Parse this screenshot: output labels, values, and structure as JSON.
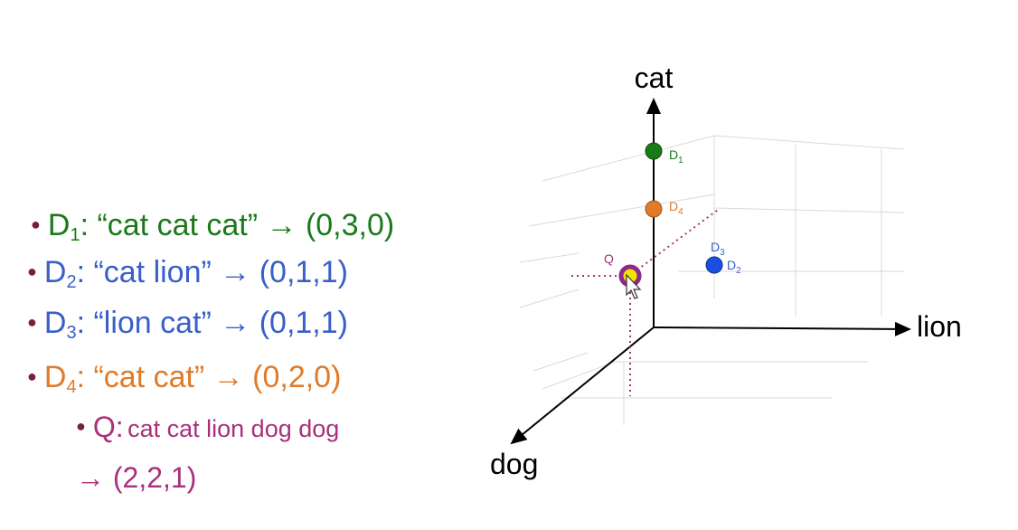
{
  "colors": {
    "d1": "#1a7a1a",
    "d2": "#3a5fc8",
    "d3": "#3a5fc8",
    "d4": "#e07b2a",
    "q": "#a8307a",
    "bullet": "#7a1f3a",
    "grid": "#d6d6d6",
    "axis": "#000000"
  },
  "documents": [
    {
      "id": "d1",
      "name": "D",
      "sub": "1",
      "text": ": “cat cat cat” → (0,3,0)"
    },
    {
      "id": "d2",
      "name": "D",
      "sub": "2",
      "text": ": “cat lion” → (0,1,1)"
    },
    {
      "id": "d3",
      "name": "D",
      "sub": "3",
      "text": ": “lion cat” → (0,1,1)"
    },
    {
      "id": "d4",
      "name": "D",
      "sub": "4",
      "text": ": “cat cat” → (0,2,0)"
    }
  ],
  "query": {
    "label": "Q:",
    "text": "cat cat lion dog dog",
    "vector": "→ (2,2,1)"
  },
  "axes": {
    "vertical": "cat",
    "horizontal": "lion",
    "depth": "dog"
  },
  "points": {
    "d1": {
      "name": "D",
      "sub": "1"
    },
    "d4": {
      "name": "D",
      "sub": "4"
    },
    "d3": {
      "name": "D",
      "sub": "3"
    },
    "d2": {
      "name": "D",
      "sub": "2"
    },
    "q": {
      "name": "Q"
    }
  },
  "icons": {
    "cursor": "mouse-pointer-icon"
  }
}
